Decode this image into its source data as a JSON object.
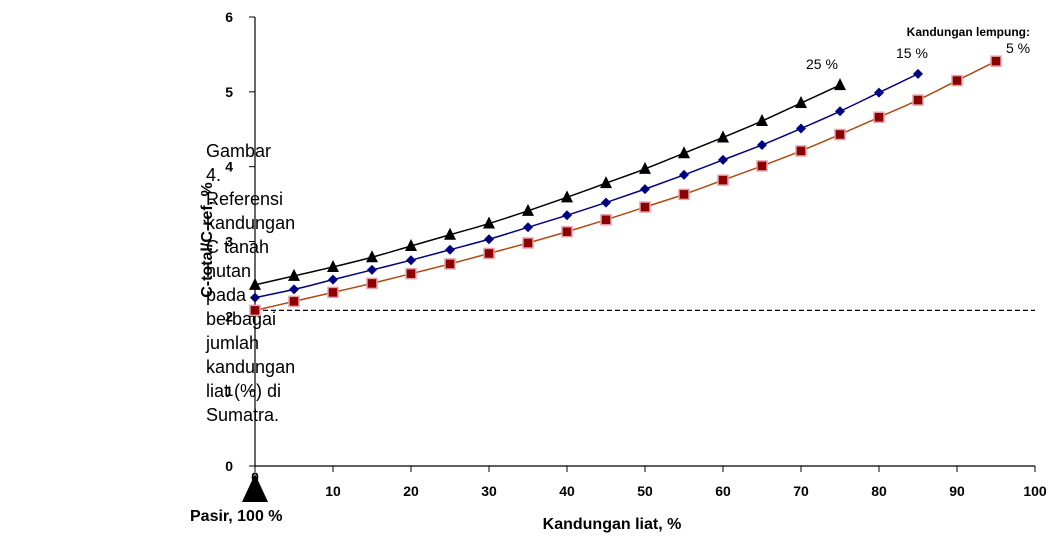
{
  "caption": "Gambar 4.\nReferensi\nkandungan\nC tanah\nhutan pada\nberbagai\njumlah\nkandungan\nliat (%) di\nSumatra.",
  "chart_data": {
    "type": "line",
    "xlabel": "Kandungan liat, %",
    "ylabel": "C-total/C-ref, %",
    "xlim": [
      0,
      100
    ],
    "ylim": [
      0,
      6
    ],
    "xticks": [
      0,
      10,
      20,
      30,
      40,
      50,
      60,
      70,
      80,
      90,
      100
    ],
    "yticks": [
      0,
      1,
      2,
      3,
      4,
      5,
      6
    ],
    "grid": false,
    "legend_title": "Kandungan lempung:",
    "reference_line": {
      "y": 2.08,
      "style": "dashed"
    },
    "annotations": [
      {
        "text": "Pasir, 100 %",
        "x": 0,
        "marker": "up-arrow"
      }
    ],
    "series": [
      {
        "name": "25 %",
        "color": "#000000",
        "marker": "triangle",
        "x": [
          0,
          5,
          10,
          15,
          20,
          25,
          30,
          35,
          40,
          45,
          50,
          55,
          60,
          65,
          70,
          75
        ],
        "y": [
          2.42,
          2.54,
          2.66,
          2.79,
          2.94,
          3.09,
          3.24,
          3.41,
          3.59,
          3.78,
          3.97,
          4.18,
          4.39,
          4.61,
          4.85,
          5.09
        ]
      },
      {
        "name": "15 %",
        "color": "#000080",
        "marker": "diamond",
        "x": [
          0,
          5,
          10,
          15,
          20,
          25,
          30,
          35,
          40,
          45,
          50,
          55,
          60,
          65,
          70,
          75,
          80,
          85
        ],
        "y": [
          2.25,
          2.36,
          2.49,
          2.62,
          2.75,
          2.89,
          3.03,
          3.19,
          3.35,
          3.52,
          3.7,
          3.89,
          4.09,
          4.29,
          4.51,
          4.74,
          4.99,
          5.24
        ]
      },
      {
        "name": "5 %",
        "color": "#8B0000",
        "line_color": "#B04A10",
        "marker": "square",
        "x": [
          0,
          5,
          10,
          15,
          20,
          25,
          30,
          35,
          40,
          45,
          50,
          55,
          60,
          65,
          70,
          75,
          80,
          85,
          90,
          95
        ],
        "y": [
          2.08,
          2.2,
          2.32,
          2.44,
          2.57,
          2.7,
          2.84,
          2.98,
          3.13,
          3.29,
          3.46,
          3.63,
          3.82,
          4.01,
          4.21,
          4.43,
          4.66,
          4.89,
          5.15,
          5.41
        ]
      }
    ]
  }
}
